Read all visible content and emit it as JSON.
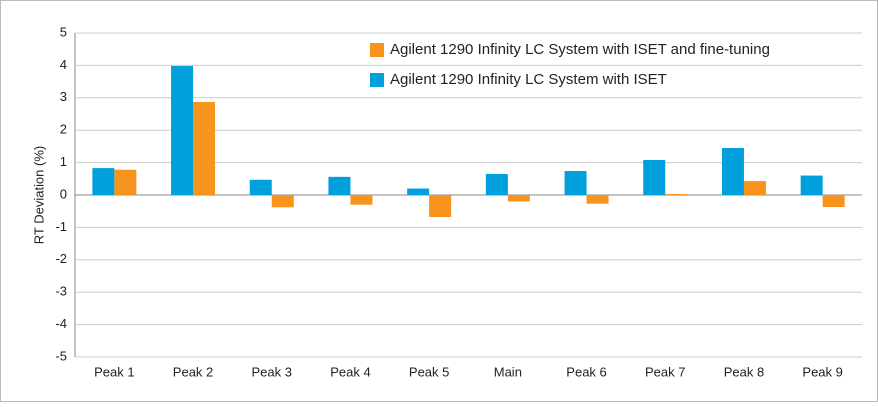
{
  "chart_data": {
    "type": "bar",
    "y_label": "RT Deviation (%)",
    "categories": [
      "Peak 1",
      "Peak 2",
      "Peak 3",
      "Peak 4",
      "Peak 5",
      "Main",
      "Peak 6",
      "Peak 7",
      "Peak 8",
      "Peak 9"
    ],
    "series": [
      {
        "name": "Agilent 1290 Infinity LC System with ISET and fine-tuning",
        "color": "#f7941d",
        "values": [
          0.78,
          2.87,
          -0.38,
          -0.3,
          -0.68,
          -0.2,
          -0.27,
          0.03,
          0.43,
          -0.37
        ]
      },
      {
        "name": "Agilent 1290 Infinity LC System with ISET",
        "color": "#00a0dd",
        "values": [
          0.83,
          3.98,
          0.47,
          0.56,
          0.2,
          0.65,
          0.74,
          1.08,
          1.45,
          0.6
        ]
      }
    ],
    "ylim": [
      -5,
      5
    ],
    "yticks": [
      -5,
      -4,
      -3,
      -2,
      -1,
      0,
      1,
      2,
      3,
      4,
      5
    ],
    "grid": true
  }
}
